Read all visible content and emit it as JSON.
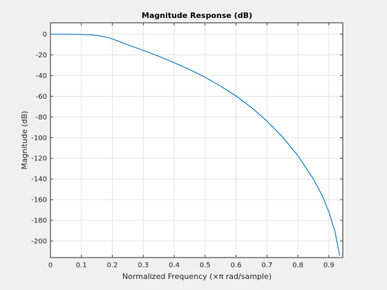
{
  "chart_data": {
    "type": "line",
    "title": "Magnitude Response (dB)",
    "xlabel": "Normalized Frequency (×π rad/sample)",
    "ylabel": "Magnitude (dB)",
    "xlim": [
      0,
      0.945
    ],
    "ylim": [
      -216,
      11
    ],
    "xticks": [
      0,
      0.1,
      0.2,
      0.3,
      0.4,
      0.5,
      0.6,
      0.7,
      0.8,
      0.9
    ],
    "xtick_labels": [
      "0",
      "0.1",
      "0.2",
      "0.3",
      "0.4",
      "0.5",
      "0.6",
      "0.7",
      "0.8",
      "0.9"
    ],
    "yticks": [
      0,
      -20,
      -40,
      -60,
      -80,
      -100,
      -120,
      -140,
      -160,
      -180,
      -200
    ],
    "ytick_labels": [
      "0",
      "-20",
      "-40",
      "-60",
      "-80",
      "-100",
      "-120",
      "-140",
      "-160",
      "-180",
      "-200"
    ],
    "grid": true,
    "line_color": "#0072bd",
    "series": [
      {
        "x": [
          0,
          0.05,
          0.1,
          0.13,
          0.15,
          0.17,
          0.19,
          0.2,
          0.22,
          0.25,
          0.3,
          0.35,
          0.4,
          0.45,
          0.5,
          0.55,
          0.6,
          0.65,
          0.7,
          0.75,
          0.8,
          0.85,
          0.88,
          0.9,
          0.92,
          0.935
        ],
        "y": [
          0,
          0,
          -0.3,
          -0.6,
          -1.2,
          -2.2,
          -3.6,
          -4.6,
          -6.8,
          -10.3,
          -15.7,
          -21.4,
          -27.5,
          -34.2,
          -41.7,
          -50.2,
          -59.8,
          -71.0,
          -84.0,
          -99.2,
          -117.5,
          -140.0,
          -157.0,
          -172.0,
          -191.0,
          -214.0
        ]
      }
    ]
  }
}
